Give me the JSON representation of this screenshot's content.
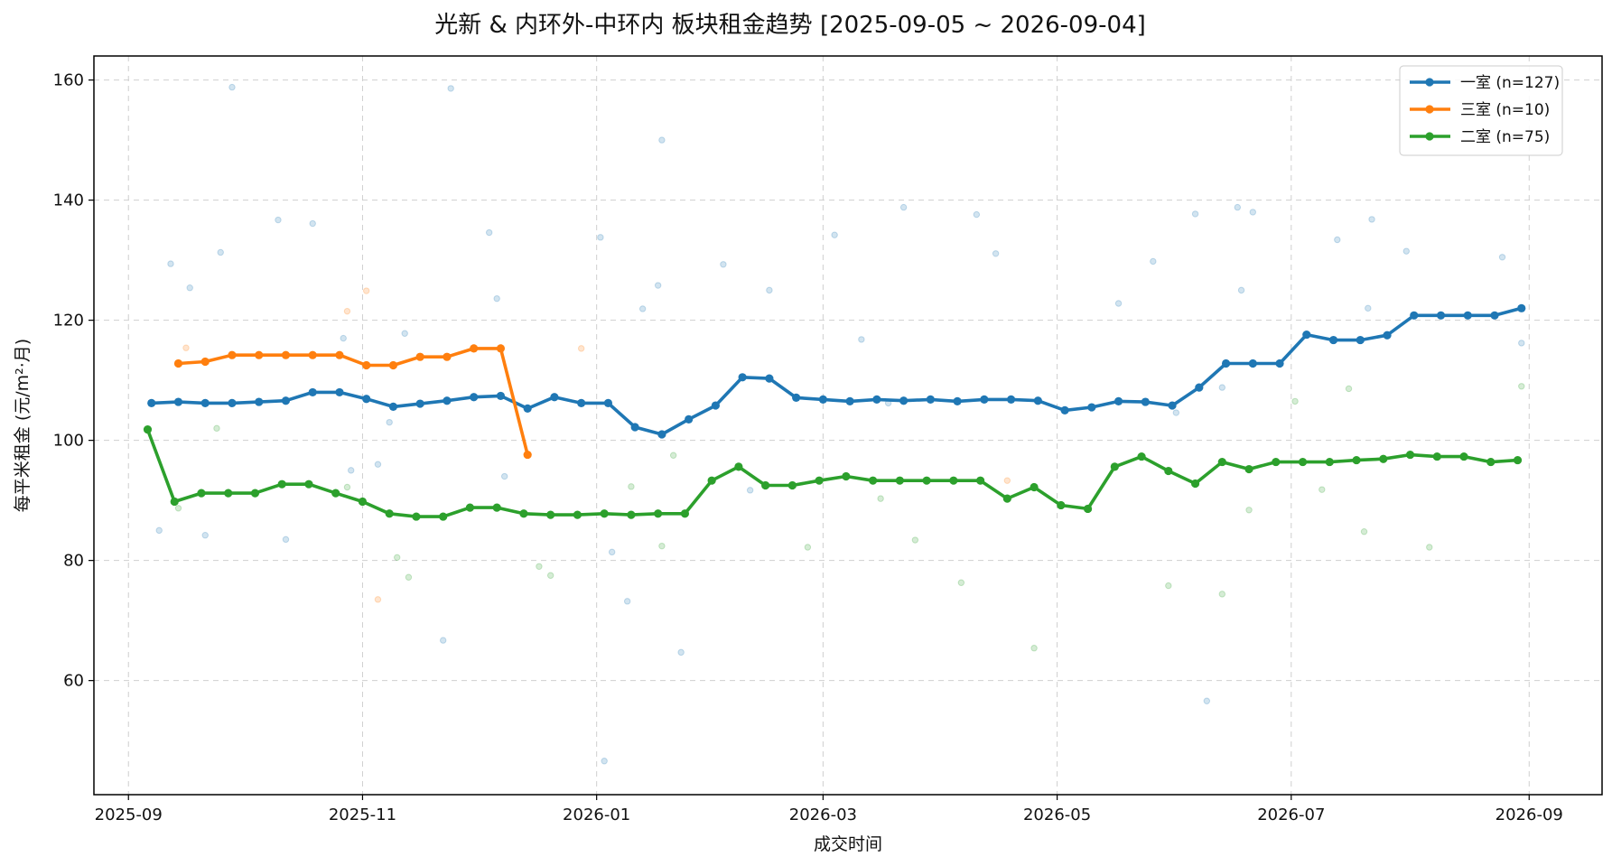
{
  "chart_data": {
    "type": "line",
    "title": "光新 & 内环外-中环内 板块租金趋势 [2025-09-05 ~ 2026-09-04]",
    "xlabel": "成交时间",
    "ylabel": "每平米租金 (元/m²·月)",
    "x_range": [
      "2025-08-23",
      "2026-09-20"
    ],
    "ylim": [
      41,
      164
    ],
    "grid": true,
    "legend_position": "top-right",
    "x_ticks": [
      "2025-09-01",
      "2025-11-01",
      "2026-01-01",
      "2026-03-01",
      "2026-05-01",
      "2026-07-01",
      "2026-09-01"
    ],
    "x_tick_labels": [
      "2025-09",
      "2025-11",
      "2026-01",
      "2026-03",
      "2026-05",
      "2026-07",
      "2026-09"
    ],
    "y_ticks": [
      60,
      80,
      100,
      120,
      140,
      160
    ],
    "series": [
      {
        "name": "一室 (n=127)",
        "color": "#1f77b4",
        "x": [
          "2025-09-07",
          "2025-09-14",
          "2025-09-21",
          "2025-09-28",
          "2025-10-05",
          "2025-10-12",
          "2025-10-19",
          "2025-10-26",
          "2025-11-02",
          "2025-11-09",
          "2025-11-16",
          "2025-11-23",
          "2025-11-30",
          "2025-12-07",
          "2025-12-14",
          "2025-12-21",
          "2025-12-28",
          "2026-01-04",
          "2026-01-11",
          "2026-01-18",
          "2026-01-25",
          "2026-02-01",
          "2026-02-08",
          "2026-02-15",
          "2026-02-22",
          "2026-03-01",
          "2026-03-08",
          "2026-03-15",
          "2026-03-22",
          "2026-03-29",
          "2026-04-05",
          "2026-04-12",
          "2026-04-19",
          "2026-04-26",
          "2026-05-03",
          "2026-05-10",
          "2026-05-17",
          "2026-05-24",
          "2026-05-31",
          "2026-06-07",
          "2026-06-14",
          "2026-06-21",
          "2026-06-28",
          "2026-07-05",
          "2026-07-12",
          "2026-07-19",
          "2026-07-26",
          "2026-08-02",
          "2026-08-09",
          "2026-08-16",
          "2026-08-23",
          "2026-08-30"
        ],
        "y": [
          106.2,
          106.4,
          106.2,
          106.2,
          106.4,
          106.6,
          108.0,
          108.0,
          106.9,
          105.6,
          106.1,
          106.6,
          107.2,
          107.4,
          105.3,
          107.2,
          106.2,
          106.2,
          102.2,
          101.0,
          103.5,
          105.8,
          110.5,
          110.3,
          107.1,
          106.8,
          106.5,
          106.8,
          106.6,
          106.8,
          106.5,
          106.8,
          106.8,
          106.6,
          105.0,
          105.5,
          106.5,
          106.4,
          105.8,
          108.8,
          112.8,
          112.8,
          112.8,
          117.6,
          116.7,
          116.7,
          117.5,
          120.8,
          120.8,
          120.8,
          120.8,
          122.0
        ]
      },
      {
        "name": "三室 (n=10)",
        "color": "#ff7f0e",
        "x": [
          "2025-09-14",
          "2025-09-21",
          "2025-09-28",
          "2025-10-05",
          "2025-10-12",
          "2025-10-19",
          "2025-10-26",
          "2025-11-02",
          "2025-11-09",
          "2025-11-16",
          "2025-11-23",
          "2025-11-30",
          "2025-12-07",
          "2025-12-14"
        ],
        "y": [
          112.8,
          113.1,
          114.2,
          114.2,
          114.2,
          114.2,
          114.2,
          112.5,
          112.5,
          113.9,
          113.9,
          115.3,
          115.3,
          97.6
        ]
      },
      {
        "name": "二室 (n=75)",
        "color": "#2ca02c",
        "x": [
          "2025-09-06",
          "2025-09-13",
          "2025-09-20",
          "2025-09-27",
          "2025-10-04",
          "2025-10-11",
          "2025-10-18",
          "2025-10-25",
          "2025-11-01",
          "2025-11-08",
          "2025-11-15",
          "2025-11-22",
          "2025-11-29",
          "2025-12-06",
          "2025-12-13",
          "2025-12-20",
          "2025-12-27",
          "2026-01-03",
          "2026-01-10",
          "2026-01-17",
          "2026-01-24",
          "2026-01-31",
          "2026-02-07",
          "2026-02-14",
          "2026-02-21",
          "2026-02-28",
          "2026-03-07",
          "2026-03-14",
          "2026-03-21",
          "2026-03-28",
          "2026-04-04",
          "2026-04-11",
          "2026-04-18",
          "2026-04-25",
          "2026-05-02",
          "2026-05-09",
          "2026-05-16",
          "2026-05-23",
          "2026-05-30",
          "2026-06-06",
          "2026-06-13",
          "2026-06-20",
          "2026-06-27",
          "2026-07-04",
          "2026-07-11",
          "2026-07-18",
          "2026-07-25",
          "2026-08-01",
          "2026-08-08",
          "2026-08-15",
          "2026-08-22",
          "2026-08-29"
        ],
        "y": [
          101.8,
          89.8,
          91.2,
          91.2,
          91.2,
          92.7,
          92.7,
          91.2,
          89.8,
          87.8,
          87.3,
          87.3,
          88.8,
          88.8,
          87.8,
          87.6,
          87.6,
          87.8,
          87.6,
          87.8,
          87.8,
          93.3,
          95.6,
          92.5,
          92.5,
          93.3,
          94.0,
          93.3,
          93.3,
          93.3,
          93.3,
          93.3,
          90.3,
          92.2,
          89.2,
          88.6,
          95.6,
          97.3,
          94.9,
          92.8,
          96.4,
          95.2,
          96.4,
          96.4,
          96.4,
          96.7,
          96.9,
          97.6,
          97.3,
          97.3,
          96.4,
          96.7
        ]
      }
    ],
    "scatter": [
      {
        "series": "一室",
        "color": "#1f77b4",
        "x": [
          "2025-09-09",
          "2025-09-12",
          "2025-09-17",
          "2025-09-21",
          "2025-09-25",
          "2025-09-28",
          "2025-10-10",
          "2025-10-12",
          "2025-10-19",
          "2025-10-27",
          "2025-10-29",
          "2025-11-05",
          "2025-11-08",
          "2025-11-12",
          "2025-11-22",
          "2025-11-24",
          "2025-12-04",
          "2025-12-06",
          "2025-12-08",
          "2026-01-02",
          "2026-01-03",
          "2026-01-05",
          "2026-01-09",
          "2026-01-13",
          "2026-01-17",
          "2026-01-18",
          "2026-01-23",
          "2026-02-03",
          "2026-02-10",
          "2026-02-15",
          "2026-03-04",
          "2026-03-11",
          "2026-03-18",
          "2026-03-22",
          "2026-04-10",
          "2026-04-15",
          "2026-05-17",
          "2026-05-26",
          "2026-06-01",
          "2026-06-06",
          "2026-06-09",
          "2026-06-13",
          "2026-06-17",
          "2026-06-18",
          "2026-06-21",
          "2026-07-13",
          "2026-07-21",
          "2026-07-22",
          "2026-07-31",
          "2026-08-25",
          "2026-08-30"
        ],
        "y": [
          85.0,
          129.4,
          125.4,
          84.2,
          131.3,
          158.8,
          136.7,
          83.5,
          136.1,
          117.0,
          95.0,
          96.0,
          103.0,
          117.8,
          66.7,
          158.6,
          134.6,
          123.6,
          94.0,
          133.8,
          46.6,
          81.4,
          73.2,
          121.9,
          125.8,
          150.0,
          64.7,
          129.3,
          91.7,
          125.0,
          134.2,
          116.8,
          106.2,
          138.8,
          137.6,
          131.1,
          122.8,
          129.8,
          104.6,
          137.7,
          56.6,
          108.8,
          138.8,
          125.0,
          138.0,
          133.4,
          122.0,
          136.8,
          131.5,
          130.5,
          116.2
        ]
      },
      {
        "series": "三室",
        "color": "#ff7f0e",
        "x": [
          "2025-09-16",
          "2025-10-28",
          "2025-11-02",
          "2025-11-05",
          "2025-12-28",
          "2026-04-18"
        ],
        "y": [
          115.4,
          121.5,
          124.9,
          73.5,
          115.3,
          93.3
        ]
      },
      {
        "series": "二室",
        "color": "#2ca02c",
        "x": [
          "2025-09-14",
          "2025-09-24",
          "2025-10-28",
          "2025-11-10",
          "2025-11-13",
          "2025-12-17",
          "2025-12-20",
          "2026-01-10",
          "2026-01-18",
          "2026-01-21",
          "2026-02-25",
          "2026-03-16",
          "2026-03-25",
          "2026-04-06",
          "2026-04-25",
          "2026-05-30",
          "2026-06-13",
          "2026-06-20",
          "2026-07-02",
          "2026-07-09",
          "2026-07-16",
          "2026-07-20",
          "2026-08-06",
          "2026-08-30"
        ],
        "y": [
          88.7,
          102.0,
          92.2,
          80.5,
          77.2,
          79.0,
          77.5,
          92.3,
          82.4,
          97.5,
          82.2,
          90.3,
          83.4,
          76.3,
          65.4,
          75.8,
          74.4,
          88.4,
          106.5,
          91.8,
          108.6,
          84.8,
          82.2,
          109.0
        ]
      }
    ]
  }
}
